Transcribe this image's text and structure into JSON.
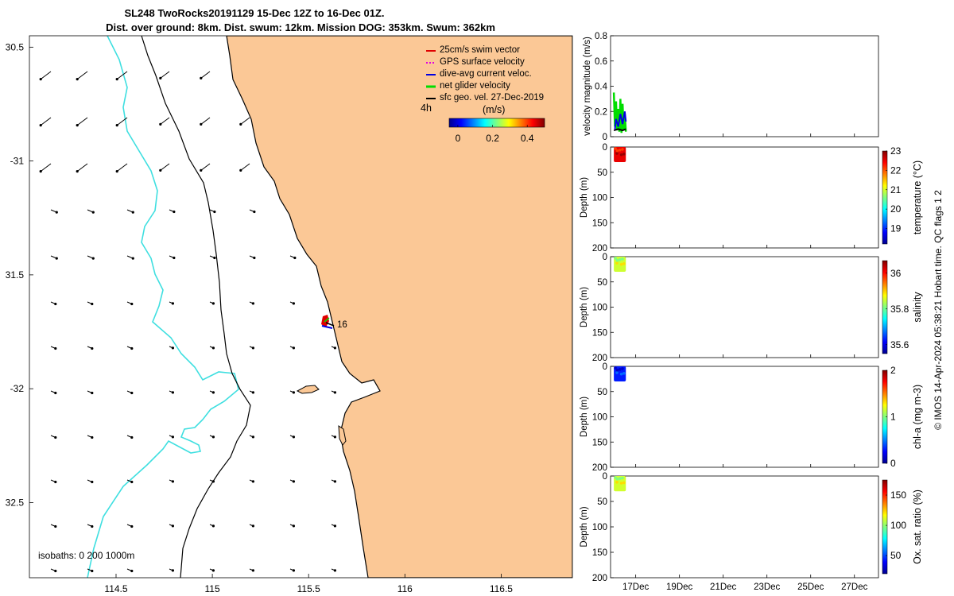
{
  "header": {
    "title_line1": "SL248 TwoRocks20191129 15-Dec 12Z to 16-Dec 01Z.",
    "title_line2": "Dist. over ground: 8km. Dist. swum: 12km. Mission DOG: 353km. Swum: 362km"
  },
  "side_label": "© IMOS 14-Apr-2024 05:38:21 Hobart time. QC flags 1  2",
  "colors": {
    "land": "#fbc896",
    "isobath_200": "#000000",
    "isobath_1000": "#000000",
    "isobath_0": "#3fdfe0",
    "swim_vector": "#e00000",
    "gps_surface": "#e000e0",
    "dive_avg": "#0000e0",
    "net_glider": "#00dd00",
    "sfc_geo": "#000000"
  },
  "map": {
    "legend": [
      {
        "label": "25cm/s swim vector",
        "color": "#e00000"
      },
      {
        "label": "GPS surface velocity",
        "color": "#e000e0"
      },
      {
        "label": "dive-avg current veloc.",
        "color": "#0000e0"
      },
      {
        "label": "net glider velocity",
        "color": "#00dd00"
      },
      {
        "label": "sfc geo. vel. 27-Dec-2019",
        "color": "#000000"
      }
    ],
    "colorbar_label": "(m/s)",
    "colorbar_ticks": [
      "0",
      "0.2",
      "0.4"
    ],
    "colorbar_range": [
      -0.05,
      0.5
    ],
    "time_label": "4h",
    "track_label": "16",
    "isobaths_label": "isobaths: 0   200  1000m"
  },
  "chart_data": [
    {
      "type": "map",
      "title": "SL248 TwoRocks20191129 15-Dec 12Z to 16-Dec 01Z.",
      "xlabel": "",
      "ylabel": "",
      "xlim": [
        114.05,
        116.87
      ],
      "ylim": [
        -32.83,
        -30.45
      ],
      "x_ticks": [
        114.5,
        115,
        115.5,
        116,
        116.5
      ],
      "x_tick_labels": [
        "114.5",
        "115",
        "115.5",
        "116",
        "116.5"
      ],
      "y_ticks": [
        -30.5,
        -31,
        -31.5,
        -32,
        -32.5
      ],
      "y_tick_labels": [
        "30.5",
        "-31",
        "31.5",
        "-32",
        "32.5"
      ],
      "glider_position": {
        "lon": 115.6,
        "lat": -31.72
      }
    },
    {
      "type": "line",
      "ylabel": "velocity magnitude (m/s)",
      "ylim": [
        0,
        0.8
      ],
      "y_ticks": [
        0,
        0.2,
        0.4,
        0.6,
        0.8
      ],
      "y_tick_labels": [
        "0",
        "0.2",
        "0.4",
        "0.6",
        "0.8"
      ],
      "xlim": [
        15.85,
        28.1
      ],
      "series": [
        {
          "color": "#00dd00",
          "x": [
            16.0,
            16.05,
            16.1,
            16.15,
            16.2,
            16.25,
            16.3,
            16.35,
            16.4,
            16.45,
            16.5,
            16.55
          ],
          "values": [
            0.35,
            0.08,
            0.28,
            0.05,
            0.22,
            0.04,
            0.3,
            0.03,
            0.26,
            0.05,
            0.18,
            0.04
          ]
        },
        {
          "color": "#0000e0",
          "x": [
            16.05,
            16.1,
            16.2,
            16.3,
            16.4,
            16.5,
            16.55
          ],
          "values": [
            0.06,
            0.14,
            0.08,
            0.18,
            0.1,
            0.2,
            0.12
          ]
        },
        {
          "color": "#000000",
          "x": [
            16.0,
            16.2,
            16.4,
            16.55
          ],
          "values": [
            0.05,
            0.06,
            0.05,
            0.06
          ]
        }
      ]
    },
    {
      "type": "heatmap",
      "ylabel": "Depth (m)",
      "ylim": [
        200,
        0
      ],
      "y_ticks": [
        0,
        50,
        100,
        150,
        200
      ],
      "y_tick_labels": [
        "0",
        "50",
        "100",
        "150",
        "200"
      ],
      "data_x_range": [
        16.0,
        16.55
      ],
      "data_depth_range": [
        0,
        30
      ],
      "colorbar_label": "temperature (°C)",
      "colorbar_range": [
        18.2,
        23
      ],
      "colorbar_ticks": [
        19,
        20,
        21,
        22,
        23
      ],
      "colorbar_tick_labels": [
        "19",
        "20",
        "21",
        "22",
        "23"
      ],
      "typical_value": 22.5
    },
    {
      "type": "heatmap",
      "ylabel": "Depth (m)",
      "ylim": [
        200,
        0
      ],
      "y_ticks": [
        0,
        50,
        100,
        150,
        200
      ],
      "y_tick_labels": [
        "0",
        "50",
        "100",
        "150",
        "200"
      ],
      "data_x_range": [
        16.0,
        16.55
      ],
      "data_depth_range": [
        0,
        30
      ],
      "colorbar_label": "salinity",
      "colorbar_range": [
        35.55,
        36.07
      ],
      "colorbar_ticks": [
        35.6,
        35.8,
        36
      ],
      "colorbar_tick_labels": [
        "35.6",
        "35.8",
        "36"
      ],
      "typical_value": 35.85
    },
    {
      "type": "heatmap",
      "ylabel": "Depth (m)",
      "ylim": [
        200,
        0
      ],
      "y_ticks": [
        0,
        50,
        100,
        150,
        200
      ],
      "y_tick_labels": [
        "0",
        "50",
        "100",
        "150",
        "200"
      ],
      "data_x_range": [
        16.0,
        16.55
      ],
      "data_depth_range": [
        0,
        30
      ],
      "colorbar_label": "chl-a (mg m-3)",
      "colorbar_range": [
        0,
        2
      ],
      "colorbar_ticks": [
        0,
        1,
        2
      ],
      "colorbar_tick_labels": [
        "0",
        "1",
        "2"
      ],
      "typical_value": 0.3
    },
    {
      "type": "heatmap",
      "ylabel": "Depth (m)",
      "ylim": [
        200,
        0
      ],
      "y_ticks": [
        0,
        50,
        100,
        150,
        200
      ],
      "y_tick_labels": [
        "0",
        "50",
        "100",
        "150",
        "200"
      ],
      "data_x_range": [
        16.0,
        16.55
      ],
      "data_depth_range": [
        0,
        30
      ],
      "colorbar_label": "Ox. sat. ratio (%)",
      "colorbar_range": [
        20,
        175
      ],
      "colorbar_ticks": [
        50,
        100,
        150
      ],
      "colorbar_tick_labels": [
        "50",
        "100",
        "150"
      ],
      "typical_value": 110,
      "x_ticks": [
        17,
        19,
        21,
        23,
        25,
        27
      ],
      "x_tick_labels": [
        "17Dec",
        "19Dec",
        "21Dec",
        "23Dec",
        "25Dec",
        "27Dec"
      ]
    }
  ]
}
